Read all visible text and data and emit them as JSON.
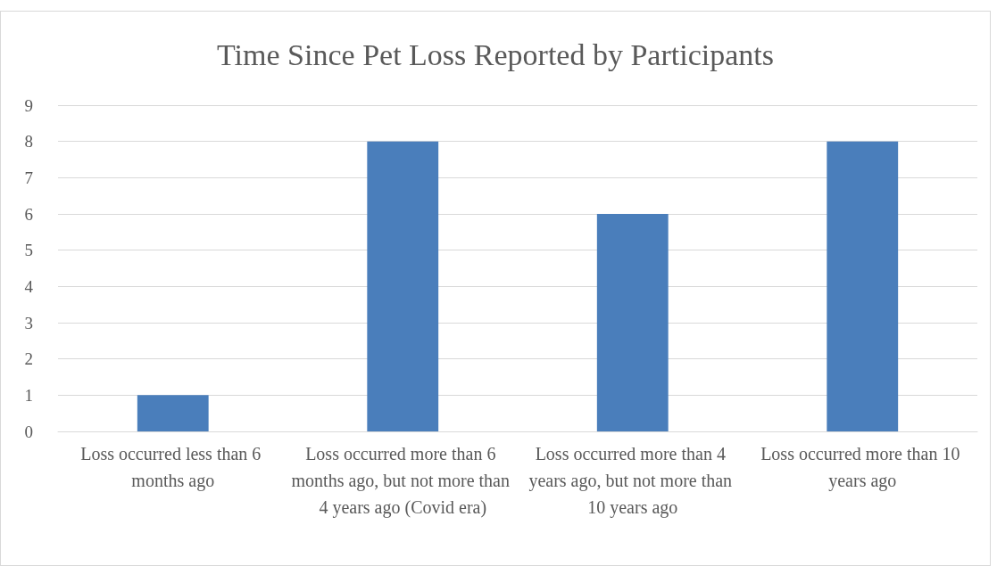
{
  "chart_data": {
    "type": "bar",
    "title": "Time Since Pet Loss Reported by Participants",
    "categories": [
      "Loss occurred less than 6 months ago",
      "Loss occurred more than 6 months ago, but not more than 4 years ago (Covid era)",
      "Loss occurred more than 4 years ago, but not more than 10 years ago",
      "Loss occurred more than 10 years ago"
    ],
    "values": [
      1,
      8,
      6,
      8
    ],
    "color": "#4a7ebb",
    "ylim": [
      0,
      9
    ],
    "yticks": [
      0,
      1,
      2,
      3,
      4,
      5,
      6,
      7,
      8,
      9
    ],
    "grid": "y"
  }
}
